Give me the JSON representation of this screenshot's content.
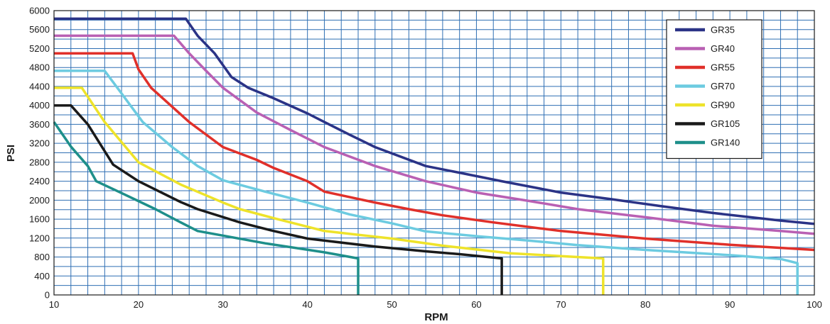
{
  "chart_data": {
    "type": "line",
    "title": "",
    "xlabel": "RPM",
    "ylabel": "PSI",
    "xlim": [
      10,
      100
    ],
    "ylim": [
      0,
      6000
    ],
    "x_ticks": [
      10,
      20,
      30,
      40,
      50,
      60,
      70,
      80,
      90,
      100
    ],
    "y_ticks": [
      0,
      400,
      800,
      1200,
      1600,
      2000,
      2400,
      2800,
      3200,
      3600,
      4000,
      4400,
      4800,
      5200,
      5600,
      6000
    ],
    "grid": true,
    "grid_x_step": 2,
    "grid_y_step": 200,
    "legend_position": "top-right",
    "series": [
      {
        "name": "GR35",
        "color": "#2b3386",
        "points": [
          [
            10,
            5830
          ],
          [
            25.6,
            5830
          ],
          [
            27,
            5470
          ],
          [
            29,
            5100
          ],
          [
            31,
            4600
          ],
          [
            33,
            4370
          ],
          [
            36,
            4150
          ],
          [
            40,
            3830
          ],
          [
            42,
            3650
          ],
          [
            45,
            3380
          ],
          [
            48,
            3120
          ],
          [
            54,
            2720
          ],
          [
            58,
            2580
          ],
          [
            63,
            2400
          ],
          [
            70,
            2160
          ],
          [
            76,
            2020
          ],
          [
            82,
            1870
          ],
          [
            88,
            1730
          ],
          [
            96,
            1570
          ],
          [
            100,
            1500
          ]
        ]
      },
      {
        "name": "GR40",
        "color": "#b960b3",
        "points": [
          [
            10,
            5470
          ],
          [
            24.2,
            5470
          ],
          [
            26,
            5100
          ],
          [
            28,
            4730
          ],
          [
            30,
            4370
          ],
          [
            34,
            3850
          ],
          [
            38,
            3480
          ],
          [
            42,
            3120
          ],
          [
            48,
            2720
          ],
          [
            54,
            2400
          ],
          [
            60,
            2160
          ],
          [
            66,
            1990
          ],
          [
            72,
            1810
          ],
          [
            80,
            1640
          ],
          [
            88,
            1460
          ],
          [
            96,
            1350
          ],
          [
            100,
            1290
          ]
        ]
      },
      {
        "name": "GR55",
        "color": "#e0302a",
        "points": [
          [
            10,
            5100
          ],
          [
            19.3,
            5100
          ],
          [
            20,
            4760
          ],
          [
            21.5,
            4370
          ],
          [
            26,
            3650
          ],
          [
            30,
            3120
          ],
          [
            34,
            2850
          ],
          [
            36,
            2680
          ],
          [
            40,
            2400
          ],
          [
            42,
            2180
          ],
          [
            48,
            1950
          ],
          [
            52,
            1810
          ],
          [
            56,
            1680
          ],
          [
            62,
            1530
          ],
          [
            70,
            1350
          ],
          [
            80,
            1190
          ],
          [
            90,
            1060
          ],
          [
            100,
            950
          ]
        ]
      },
      {
        "name": "GR70",
        "color": "#6ccbe0",
        "points": [
          [
            10,
            4730
          ],
          [
            16,
            4730
          ],
          [
            17.5,
            4370
          ],
          [
            20.5,
            3650
          ],
          [
            24,
            3120
          ],
          [
            27,
            2720
          ],
          [
            30,
            2420
          ],
          [
            35,
            2180
          ],
          [
            40,
            1950
          ],
          [
            45,
            1700
          ],
          [
            50,
            1510
          ],
          [
            54,
            1340
          ],
          [
            60,
            1240
          ],
          [
            66,
            1150
          ],
          [
            72,
            1050
          ],
          [
            80,
            950
          ],
          [
            90,
            840
          ],
          [
            96,
            760
          ],
          [
            98,
            670
          ],
          [
            98,
            0
          ]
        ]
      },
      {
        "name": "GR90",
        "color": "#eee32a",
        "points": [
          [
            10,
            4370
          ],
          [
            13.3,
            4370
          ],
          [
            16,
            3650
          ],
          [
            20,
            2800
          ],
          [
            25,
            2330
          ],
          [
            30,
            1950
          ],
          [
            32,
            1810
          ],
          [
            36,
            1620
          ],
          [
            42,
            1350
          ],
          [
            50,
            1190
          ],
          [
            56,
            1040
          ],
          [
            64,
            880
          ],
          [
            70,
            820
          ],
          [
            75,
            770
          ],
          [
            75,
            0
          ]
        ]
      },
      {
        "name": "GR105",
        "color": "#1a1a1a",
        "points": [
          [
            10,
            4000
          ],
          [
            12,
            4000
          ],
          [
            14,
            3600
          ],
          [
            17,
            2750
          ],
          [
            20,
            2400
          ],
          [
            25,
            1960
          ],
          [
            27,
            1810
          ],
          [
            32,
            1530
          ],
          [
            36,
            1350
          ],
          [
            40,
            1190
          ],
          [
            48,
            1020
          ],
          [
            54,
            920
          ],
          [
            58,
            860
          ],
          [
            63,
            770
          ],
          [
            63,
            0
          ]
        ]
      },
      {
        "name": "GR140",
        "color": "#1e8f8a",
        "points": [
          [
            10,
            3650
          ],
          [
            12,
            3130
          ],
          [
            14,
            2720
          ],
          [
            15,
            2400
          ],
          [
            18,
            2150
          ],
          [
            22,
            1810
          ],
          [
            25,
            1530
          ],
          [
            27,
            1350
          ],
          [
            35,
            1090
          ],
          [
            42,
            900
          ],
          [
            46,
            770
          ],
          [
            46,
            0
          ]
        ]
      }
    ]
  }
}
